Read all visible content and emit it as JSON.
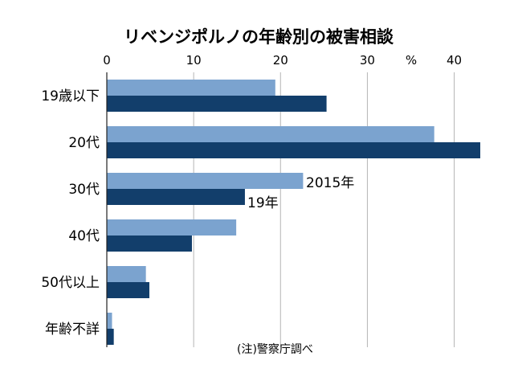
{
  "chart_data": {
    "type": "bar",
    "orientation": "horizontal",
    "title": "リベンジポルノの年齢別の被害相談",
    "unit_label": "%",
    "categories": [
      "19歳以下",
      "20代",
      "30代",
      "40代",
      "50代以上",
      "年齢不詳"
    ],
    "series": [
      {
        "name": "2015年",
        "color": "#7ba3cf",
        "values": [
          19.4,
          37.7,
          22.6,
          14.9,
          4.5,
          0.6
        ]
      },
      {
        "name": "19年",
        "color": "#123e6b",
        "values": [
          25.3,
          43.0,
          15.9,
          9.8,
          4.9,
          0.8
        ]
      }
    ],
    "xlim": [
      0,
      43
    ],
    "ticks": [
      0,
      10,
      20,
      30,
      40
    ],
    "axis_position": "top",
    "grid": true,
    "series_labels_on_category": "30代",
    "note": "(注)警察庁調べ"
  }
}
